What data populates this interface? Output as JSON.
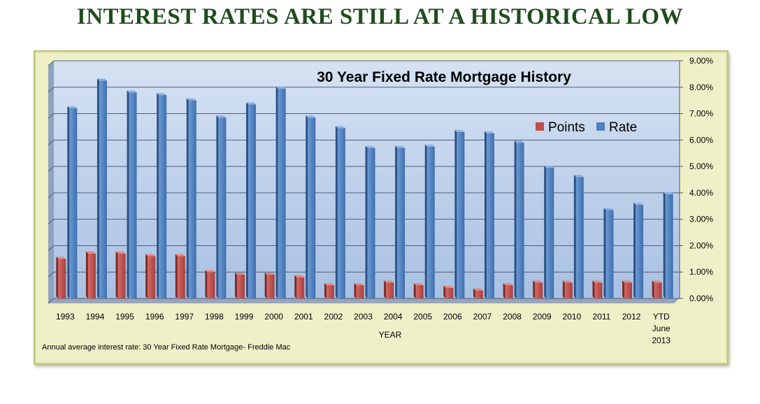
{
  "page": {
    "headline": "INTEREST RATES ARE STILL AT A HISTORICAL LOW",
    "footnote": "Annual average interest rate: 30 Year Fixed Rate Mortgage- Freddie Mac"
  },
  "chart_data": {
    "type": "bar",
    "title": "30 Year Fixed Rate Mortgage History",
    "xlabel": "YEAR",
    "ylabel": "",
    "ylim": [
      0,
      9
    ],
    "yticks": [
      "0.00%",
      "1.00%",
      "2.00%",
      "3.00%",
      "4.00%",
      "5.00%",
      "6.00%",
      "7.00%",
      "8.00%",
      "9.00%"
    ],
    "grid": true,
    "legend": "top-right",
    "categories": [
      "1993",
      "1994",
      "1995",
      "1996",
      "1997",
      "1998",
      "1999",
      "2000",
      "2001",
      "2002",
      "2003",
      "2004",
      "2005",
      "2006",
      "2007",
      "2008",
      "2009",
      "2010",
      "2011",
      "2012",
      "YTD\nJune\n2013"
    ],
    "series": [
      {
        "name": "Points",
        "color": "#c0504d",
        "values": [
          1.5,
          1.7,
          1.7,
          1.6,
          1.6,
          1.0,
          0.9,
          0.9,
          0.8,
          0.5,
          0.5,
          0.6,
          0.5,
          0.4,
          0.3,
          0.5,
          0.6,
          0.6,
          0.6,
          0.6,
          0.6
        ]
      },
      {
        "name": "Rate",
        "color": "#4f81bd",
        "values": [
          7.2,
          8.25,
          7.8,
          7.7,
          7.5,
          6.85,
          7.35,
          7.95,
          6.85,
          6.45,
          5.7,
          5.7,
          5.75,
          6.3,
          6.25,
          5.9,
          4.95,
          4.6,
          3.35,
          3.55,
          3.95
        ]
      }
    ]
  }
}
